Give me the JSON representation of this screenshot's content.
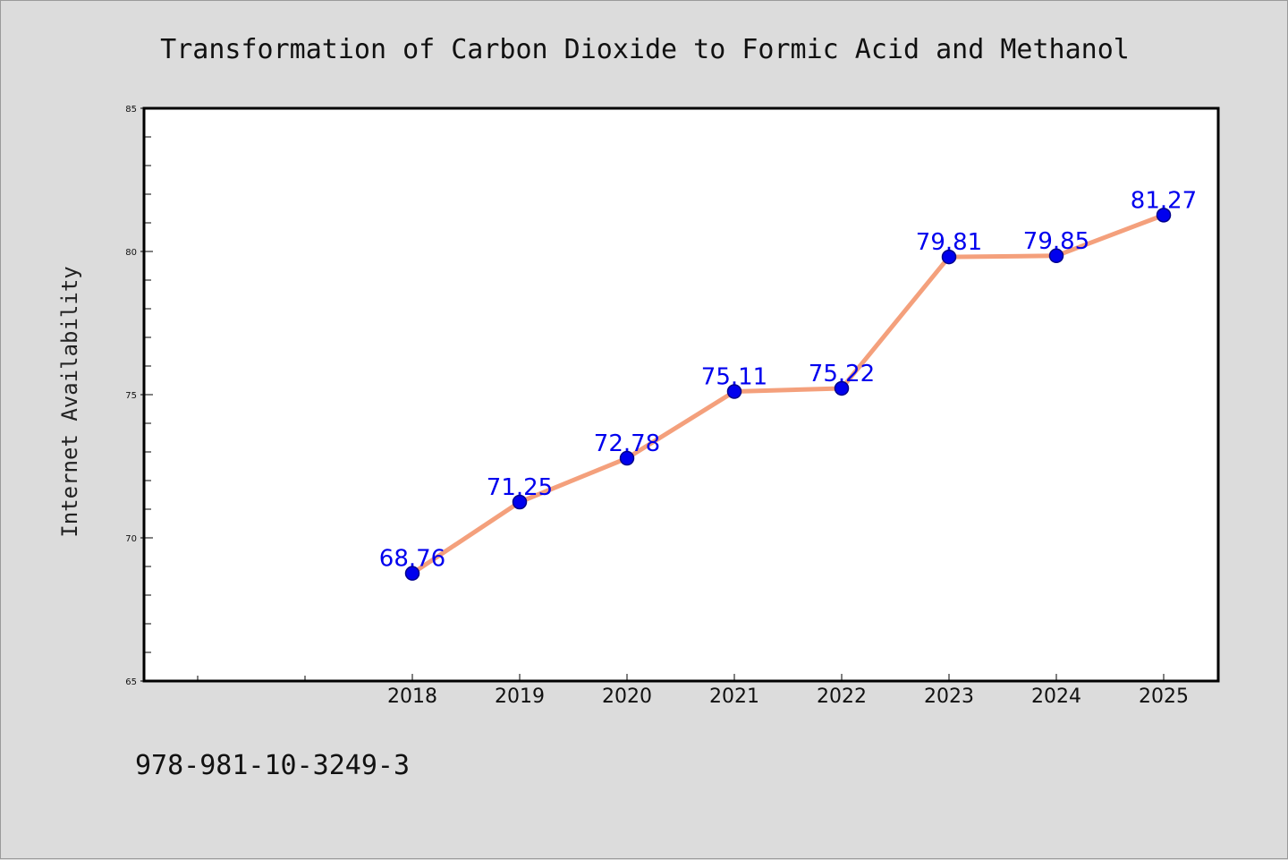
{
  "chart_data": {
    "type": "line",
    "title": "Transformation of Carbon Dioxide to Formic Acid and Methanol",
    "xlabel": "",
    "ylabel": "Internet Availability",
    "categories": [
      "2018",
      "2019",
      "2020",
      "2021",
      "2022",
      "2023",
      "2024",
      "2025"
    ],
    "series": [
      {
        "values": [
          68.76,
          71.25,
          72.78,
          75.11,
          75.22,
          79.81,
          79.85,
          81.27
        ],
        "data_labels": [
          "68.76",
          "71.25",
          "72.78",
          "75.11",
          "75.22",
          "79.81",
          "79.85",
          "81.27"
        ]
      }
    ],
    "ylim": [
      65,
      85
    ],
    "yticks": [
      "65",
      "70",
      "75",
      "80",
      "85"
    ],
    "grid": false,
    "legend": "none",
    "colors": {
      "line": "#f4a07c",
      "marker": "#0000ee",
      "marker_edge": "#00008b",
      "data_label": "#0000ee",
      "plot_background": "#ffffff",
      "page_background": "#dcdcdc"
    }
  },
  "footer": {
    "isbn": "978-981-10-3249-3"
  }
}
